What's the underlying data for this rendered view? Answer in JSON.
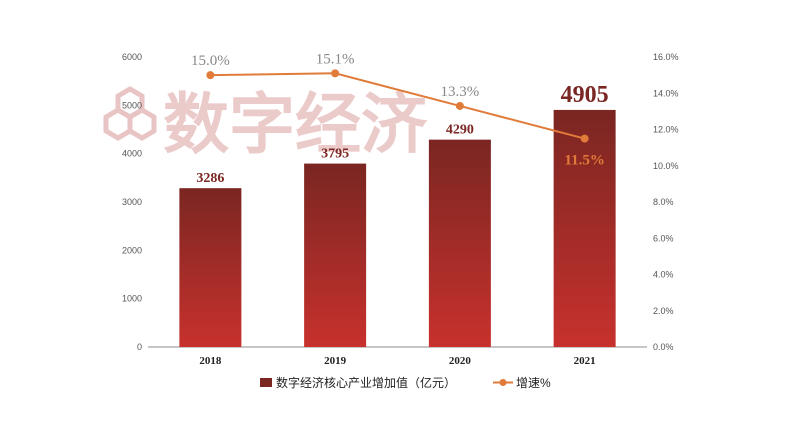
{
  "chart_data": {
    "type": "bar",
    "categories": [
      "2018",
      "2019",
      "2020",
      "2021"
    ],
    "series": [
      {
        "name": "数字经济核心产业增加值（亿元）",
        "type": "bar",
        "axis": "left",
        "values": [
          3286,
          3795,
          4290,
          4905
        ],
        "value_labels": [
          "3286",
          "3795",
          "4290",
          "4905"
        ]
      },
      {
        "name": "增速%",
        "type": "line",
        "axis": "right",
        "values": [
          15.0,
          15.1,
          13.3,
          11.5
        ],
        "value_labels": [
          "15.0%",
          "15.1%",
          "13.3%",
          "11.5%"
        ]
      }
    ],
    "y_left": {
      "range": [
        0,
        6000
      ],
      "ticks": [
        "0",
        "1000",
        "2000",
        "3000",
        "4000",
        "5000",
        "6000"
      ]
    },
    "y_right": {
      "range": [
        0,
        16
      ],
      "ticks": [
        "0.0%",
        "2.0%",
        "4.0%",
        "6.0%",
        "8.0%",
        "10.0%",
        "12.0%",
        "14.0%",
        "16.0%"
      ]
    },
    "grid": false,
    "legend_position": "bottom",
    "watermark_text": "数字经济",
    "colors": {
      "bar_top": "#7a2622",
      "bar_bottom": "#c8312d",
      "line": "#e07b39",
      "label_bar": "#7a2622",
      "label_line_default": "#888888",
      "label_line_highlight": "#e07b39",
      "watermark": "#e9c4c4"
    }
  }
}
